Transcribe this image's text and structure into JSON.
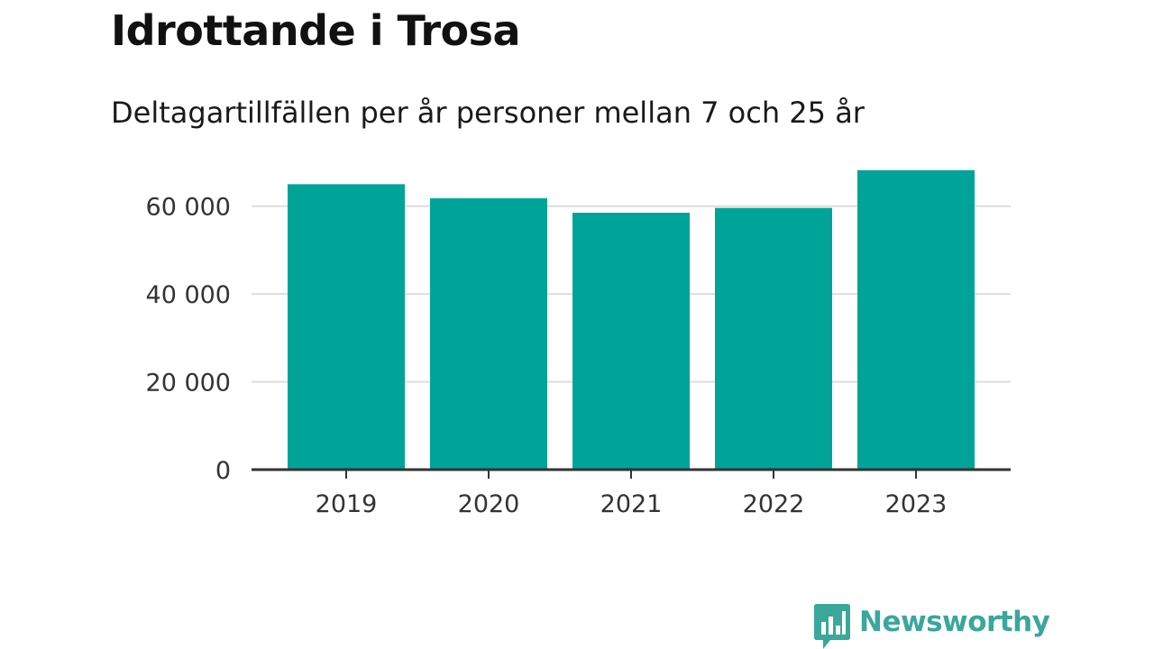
{
  "title": "Idrottande i Trosa",
  "subtitle": "Deltagartillfällen per år personer mellan 7 och 25 år",
  "brand": {
    "name": "Newsworthy",
    "color": "#3aa79b",
    "icon": "bar-chart-speech-bubble-icon"
  },
  "chart_data": {
    "type": "bar",
    "categories": [
      "2019",
      "2020",
      "2021",
      "2022",
      "2023"
    ],
    "values": [
      65000,
      61800,
      58500,
      59600,
      68200
    ],
    "ylim": [
      0,
      70000
    ],
    "yticks": [
      0,
      20000,
      40000,
      60000
    ],
    "ytick_labels": [
      "0",
      "20 000",
      "40 000",
      "60 000"
    ],
    "xlabel": "",
    "ylabel": "",
    "grid": true,
    "bar_color": "#00a398",
    "grid_color": "#dddddd",
    "axis_color": "#333333"
  }
}
